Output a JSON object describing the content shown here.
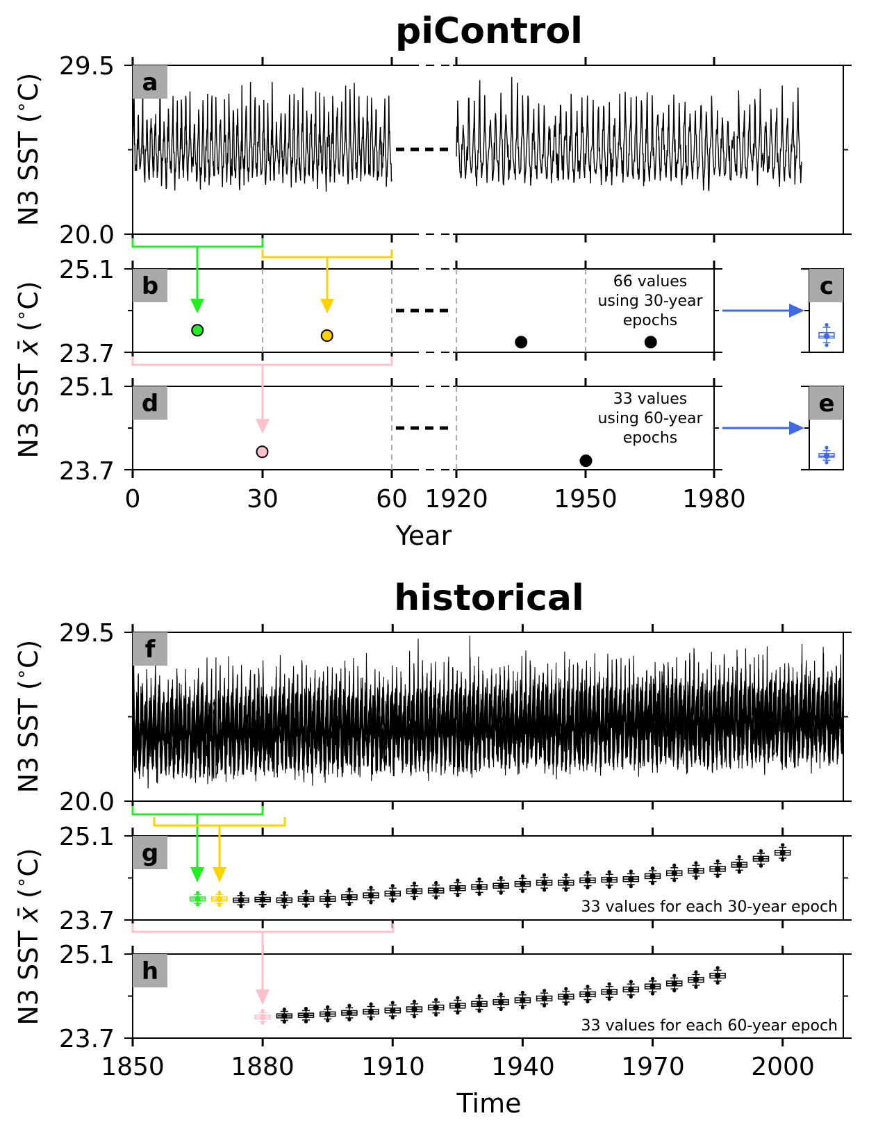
{
  "chart_data": [
    {
      "type": "line",
      "title": "piControl",
      "xlabel": "Year",
      "x_tick_labels": [
        "0",
        "30",
        "60",
        "1920",
        "1950",
        "1980"
      ],
      "axis_break": "60 | 1920",
      "colors": {
        "epoch1": "#22ee22",
        "epoch2": "#ffd200",
        "epoch60": "#ffc0cb",
        "summary": "#4169e1",
        "grey_dash": "#aaaaaa"
      },
      "panels": [
        {
          "id": "a",
          "label": "a",
          "type": "line",
          "ylabel": "N3 SST ($^\\circ$C)",
          "ylim": [
            20.0,
            29.5
          ],
          "y_tick_labels": [
            "29.5",
            "20.0"
          ],
          "series_note": "monthly N3 SST; first segment years 0-60, second segment years 1920-1985",
          "mean": 24.9
        },
        {
          "id": "b",
          "label": "b",
          "type": "scatter",
          "ylabel": "N3 SST $\\bar{x}$ ($^\\circ$C)",
          "ylim": [
            23.7,
            25.1
          ],
          "y_tick_labels": [
            "25.1",
            "23.7"
          ],
          "points": [
            {
              "x": 15,
              "y": 24.07,
              "color": "#22ee22"
            },
            {
              "x": 45,
              "y": 23.98,
              "color": "#ffd200"
            },
            {
              "x": 1935,
              "y": 23.87,
              "color": "#000000"
            },
            {
              "x": 1965,
              "y": 23.87,
              "color": "#000000"
            }
          ],
          "annotation": [
            "66 values",
            "using 30-year",
            "epochs"
          ]
        },
        {
          "id": "c",
          "label": "c",
          "type": "box",
          "ylim": [
            23.7,
            25.1
          ],
          "box": {
            "q1": 23.94,
            "median": 23.97,
            "q3": 24.03,
            "whisker_low": 23.86,
            "whisker_high": 24.12,
            "mean": 23.97,
            "fliers": [
              24.16,
              23.82
            ]
          }
        },
        {
          "id": "d",
          "label": "d",
          "type": "scatter",
          "ylim": [
            23.7,
            25.1
          ],
          "y_tick_labels": [
            "25.1",
            "23.7"
          ],
          "points": [
            {
              "x": 30,
              "y": 24.0,
              "color": "#ffc0cb"
            },
            {
              "x": 1950,
              "y": 23.85,
              "color": "#000000"
            }
          ],
          "annotation": [
            "33 values",
            "using 60-year",
            "epochs"
          ]
        },
        {
          "id": "e",
          "label": "e",
          "type": "box",
          "ylim": [
            23.7,
            25.1
          ],
          "box": {
            "q1": 23.91,
            "median": 23.93,
            "q3": 23.97,
            "whisker_low": 23.86,
            "whisker_high": 24.02,
            "mean": 23.93,
            "fliers": [
              24.07,
              23.82
            ]
          }
        }
      ]
    },
    {
      "type": "line",
      "title": "historical",
      "xlabel": "Time",
      "xlim": [
        1850,
        2014
      ],
      "x_tick_labels": [
        "1850",
        "1880",
        "1910",
        "1940",
        "1970",
        "2000"
      ],
      "panels": [
        {
          "id": "f",
          "label": "f",
          "type": "line",
          "ylabel": "N3 SST ($^\\circ$C)",
          "ylim": [
            20.0,
            29.5
          ],
          "y_tick_labels": [
            "29.5",
            "20.0"
          ],
          "series_note": "33 overlaid ensemble members of monthly N3 SST, 1850-2014",
          "n_members": 33,
          "mean_start": 24.0,
          "mean_end": 24.8
        },
        {
          "id": "g",
          "label": "g",
          "type": "box",
          "ylabel": "N3 SST $\\bar{x}$ ($^\\circ$C)",
          "ylim": [
            23.7,
            25.1
          ],
          "y_tick_labels": [
            "25.1",
            "23.7"
          ],
          "epoch_length_years": 30,
          "x": [
            1865,
            1870,
            1875,
            1880,
            1885,
            1890,
            1895,
            1900,
            1905,
            1910,
            1915,
            1920,
            1925,
            1930,
            1935,
            1940,
            1945,
            1950,
            1955,
            1960,
            1965,
            1970,
            1975,
            1980,
            1985,
            1990,
            1995,
            2000
          ],
          "means": [
            24.05,
            24.05,
            24.03,
            24.04,
            24.03,
            24.05,
            24.05,
            24.08,
            24.11,
            24.14,
            24.18,
            24.19,
            24.23,
            24.25,
            24.27,
            24.3,
            24.32,
            24.32,
            24.36,
            24.37,
            24.38,
            24.43,
            24.48,
            24.52,
            24.55,
            24.62,
            24.72,
            24.82
          ],
          "annotation": "33 values for each 30-year epoch"
        },
        {
          "id": "h",
          "label": "h",
          "type": "box",
          "ylim": [
            23.7,
            25.1
          ],
          "y_tick_labels": [
            "25.1",
            "23.7"
          ],
          "epoch_length_years": 60,
          "x": [
            1880,
            1885,
            1890,
            1895,
            1900,
            1905,
            1910,
            1915,
            1920,
            1925,
            1930,
            1935,
            1940,
            1945,
            1950,
            1955,
            1960,
            1965,
            1970,
            1975,
            1980,
            1985
          ],
          "means": [
            24.05,
            24.07,
            24.08,
            24.1,
            24.12,
            24.14,
            24.16,
            24.18,
            24.21,
            24.24,
            24.27,
            24.3,
            24.33,
            24.36,
            24.39,
            24.43,
            24.47,
            24.51,
            24.56,
            24.61,
            24.67,
            24.74
          ],
          "annotation": "33 values for each 60-year epoch"
        }
      ]
    }
  ]
}
